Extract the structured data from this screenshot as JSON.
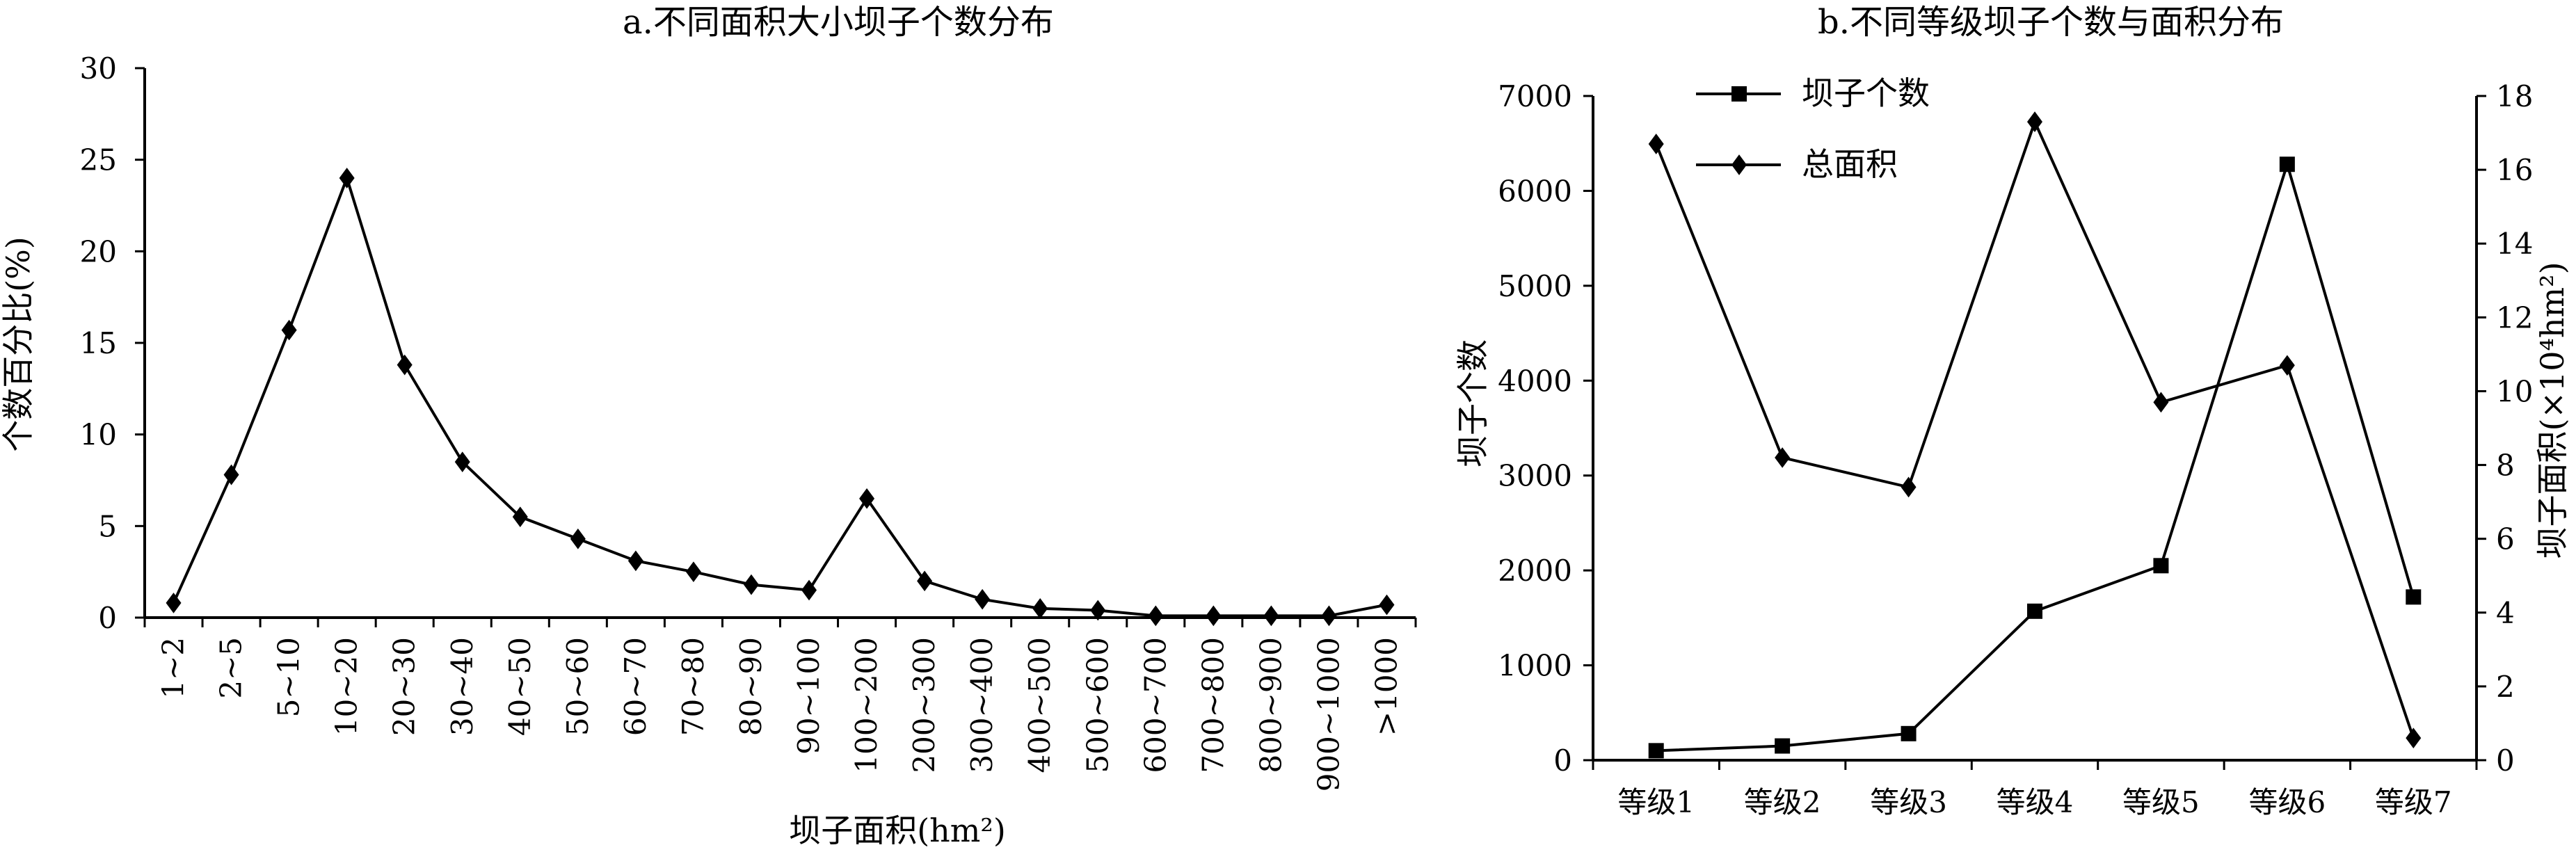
{
  "chart_data": [
    {
      "type": "line",
      "title": "a.不同面积大小坝子个数分布",
      "xlabel": "坝子面积(hm²)",
      "ylabel": "个数百分比(%)",
      "ylim": [
        0,
        30
      ],
      "yticks": [
        "0",
        "5",
        "10",
        "15",
        "20",
        "25",
        "30"
      ],
      "categories": [
        "1~2",
        "2~5",
        "5~10",
        "10~20",
        "20~30",
        "30~40",
        "40~50",
        "50~60",
        "60~70",
        "70~80",
        "80~90",
        "90~100",
        "100~200",
        "200~300",
        "300~400",
        "400~500",
        "500~600",
        "600~700",
        "700~800",
        "800~900",
        "900~1000",
        ">1000"
      ],
      "series": [
        {
          "marker": "diamond",
          "values": [
            0.8,
            7.8,
            15.7,
            24.0,
            13.8,
            8.5,
            5.5,
            4.3,
            3.1,
            2.5,
            1.8,
            1.5,
            6.5,
            2.0,
            1.0,
            0.5,
            0.4,
            0.1,
            0.1,
            0.1,
            0.1,
            0.7
          ]
        }
      ],
      "grid": false
    },
    {
      "type": "line",
      "title": "b.不同等级坝子个数与面积分布",
      "ylabel": "坝子个数",
      "y2label": "坝子面积(×10⁴hm²)",
      "ylim": [
        0,
        7000
      ],
      "y2lim": [
        0,
        18
      ],
      "yticks": [
        "0",
        "1000",
        "2000",
        "3000",
        "4000",
        "5000",
        "6000",
        "7000"
      ],
      "y2ticks": [
        "0",
        "2",
        "4",
        "6",
        "8",
        "10",
        "12",
        "14",
        "16",
        "18"
      ],
      "categories": [
        "等级1",
        "等级2",
        "等级3",
        "等级4",
        "等级5",
        "等级6",
        "等级7"
      ],
      "series": [
        {
          "name": "坝子个数",
          "axis": "left",
          "marker": "square",
          "values": [
            100,
            150,
            280,
            1570,
            2050,
            6280,
            1720
          ]
        },
        {
          "name": "总面积",
          "axis": "right",
          "marker": "diamond",
          "values": [
            16.7,
            8.2,
            7.4,
            17.3,
            9.7,
            10.7,
            0.6
          ]
        }
      ],
      "legend_position": "top-left",
      "grid": false
    }
  ]
}
